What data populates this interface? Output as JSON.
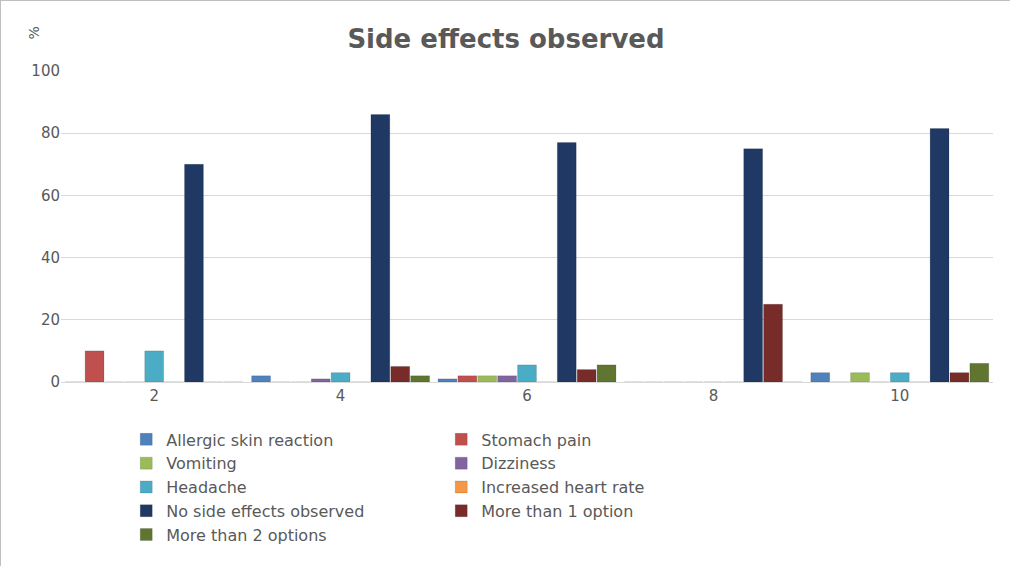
{
  "chart_data": {
    "type": "bar",
    "title": "Side effects observed",
    "ylabel": "%",
    "categories": [
      "2",
      "4",
      "6",
      "8",
      "10"
    ],
    "series": [
      {
        "name": "Allergic skin reaction",
        "color": "#4f81bd",
        "values": [
          0,
          2,
          1,
          0,
          3
        ]
      },
      {
        "name": "Stomach pain",
        "color": "#c0504d",
        "values": [
          10,
          0,
          2,
          0,
          0
        ]
      },
      {
        "name": "Vomiting",
        "color": "#9bbb59",
        "values": [
          0,
          0,
          2,
          0,
          3
        ]
      },
      {
        "name": "Dizziness",
        "color": "#8064a2",
        "values": [
          0,
          1,
          2,
          0,
          0
        ]
      },
      {
        "name": "Headache",
        "color": "#4bacc6",
        "values": [
          10,
          3,
          5.5,
          0,
          3
        ]
      },
      {
        "name": "Increased heart rate",
        "color": "#f79646",
        "values": [
          0,
          0,
          0,
          0,
          0
        ]
      },
      {
        "name": "No side effects observed",
        "color": "#1f3864",
        "values": [
          70,
          86,
          77,
          75,
          81.5
        ]
      },
      {
        "name": "More than 1 option",
        "color": "#772c2a",
        "values": [
          0,
          5,
          4,
          25,
          3
        ]
      },
      {
        "name": "More than 2 options",
        "color": "#5f7530",
        "values": [
          0,
          2,
          5.5,
          0,
          6
        ]
      }
    ],
    "ylim": [
      0,
      100
    ],
    "yticks": [
      0,
      20,
      40,
      60,
      80,
      100
    ],
    "grid": true,
    "legend": "bottom"
  }
}
